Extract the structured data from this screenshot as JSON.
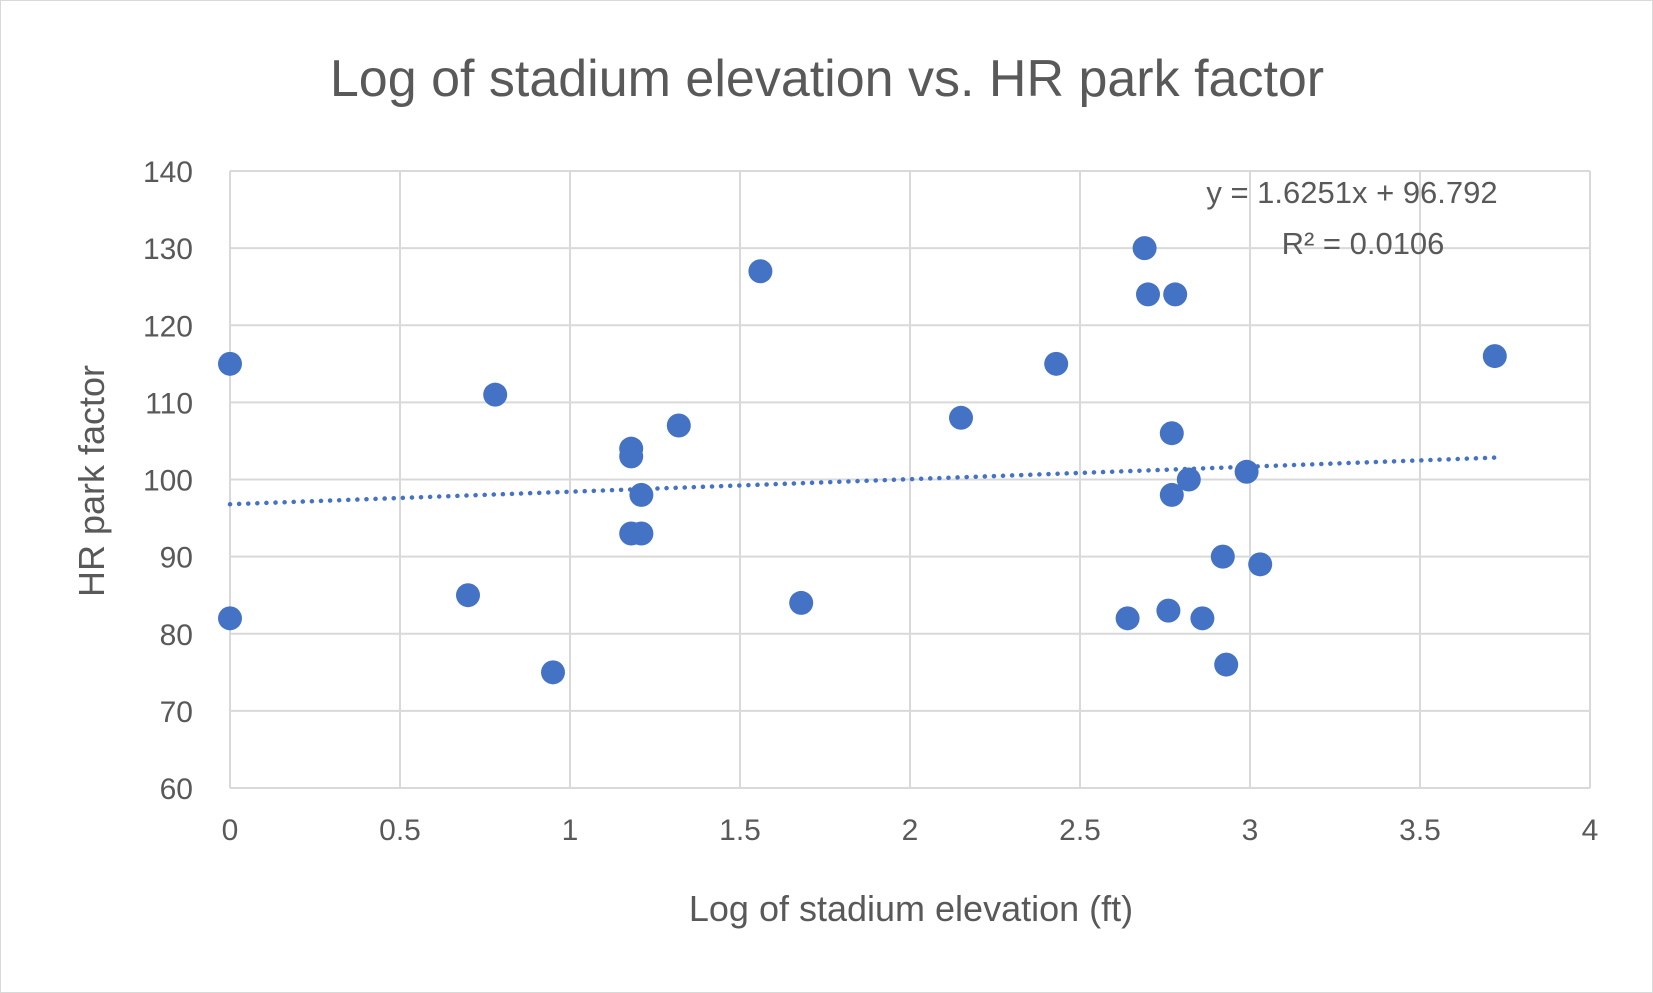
{
  "chart_data": {
    "type": "scatter",
    "title": "Log of stadium elevation vs. HR park factor",
    "xlabel": "Log of stadium elevation (ft)",
    "ylabel": "HR park factor",
    "xlim": [
      0,
      4
    ],
    "ylim": [
      60,
      140
    ],
    "xticks": [
      0,
      0.5,
      1,
      1.5,
      2,
      2.5,
      3,
      3.5,
      4
    ],
    "xtick_labels": [
      "0",
      "0.5",
      "1",
      "1.5",
      "2",
      "2.5",
      "3",
      "3.5",
      "4"
    ],
    "yticks": [
      60,
      70,
      80,
      90,
      100,
      110,
      120,
      130,
      140
    ],
    "ytick_labels": [
      "60",
      "70",
      "80",
      "90",
      "100",
      "110",
      "120",
      "130",
      "140"
    ],
    "grid": true,
    "legend": "none",
    "marker_color": "#4472c4",
    "series": [
      {
        "points": [
          {
            "x": 0,
            "y": 115
          },
          {
            "x": 0,
            "y": 82
          },
          {
            "x": 0.7,
            "y": 85
          },
          {
            "x": 0.78,
            "y": 111
          },
          {
            "x": 0.95,
            "y": 75
          },
          {
            "x": 1.18,
            "y": 104
          },
          {
            "x": 1.18,
            "y": 103
          },
          {
            "x": 1.18,
            "y": 93
          },
          {
            "x": 1.21,
            "y": 93
          },
          {
            "x": 1.21,
            "y": 98
          },
          {
            "x": 1.32,
            "y": 107
          },
          {
            "x": 1.56,
            "y": 127
          },
          {
            "x": 1.68,
            "y": 84
          },
          {
            "x": 2.15,
            "y": 108
          },
          {
            "x": 2.43,
            "y": 115
          },
          {
            "x": 2.64,
            "y": 82
          },
          {
            "x": 2.69,
            "y": 130
          },
          {
            "x": 2.7,
            "y": 124
          },
          {
            "x": 2.76,
            "y": 83
          },
          {
            "x": 2.77,
            "y": 106
          },
          {
            "x": 2.77,
            "y": 98
          },
          {
            "x": 2.78,
            "y": 124
          },
          {
            "x": 2.82,
            "y": 100
          },
          {
            "x": 2.86,
            "y": 82
          },
          {
            "x": 2.92,
            "y": 90
          },
          {
            "x": 2.93,
            "y": 76
          },
          {
            "x": 2.99,
            "y": 101
          },
          {
            "x": 3.03,
            "y": 89
          },
          {
            "x": 3.72,
            "y": 116
          }
        ]
      }
    ],
    "trendline": {
      "type": "linear",
      "style": "dotted",
      "color": "#4472c4",
      "slope": 1.6251,
      "intercept": 96.792,
      "x_range": [
        0,
        3.72
      ],
      "equation_label": "y = 1.6251x + 96.792",
      "r2_label": "R² = 0.0106"
    }
  }
}
